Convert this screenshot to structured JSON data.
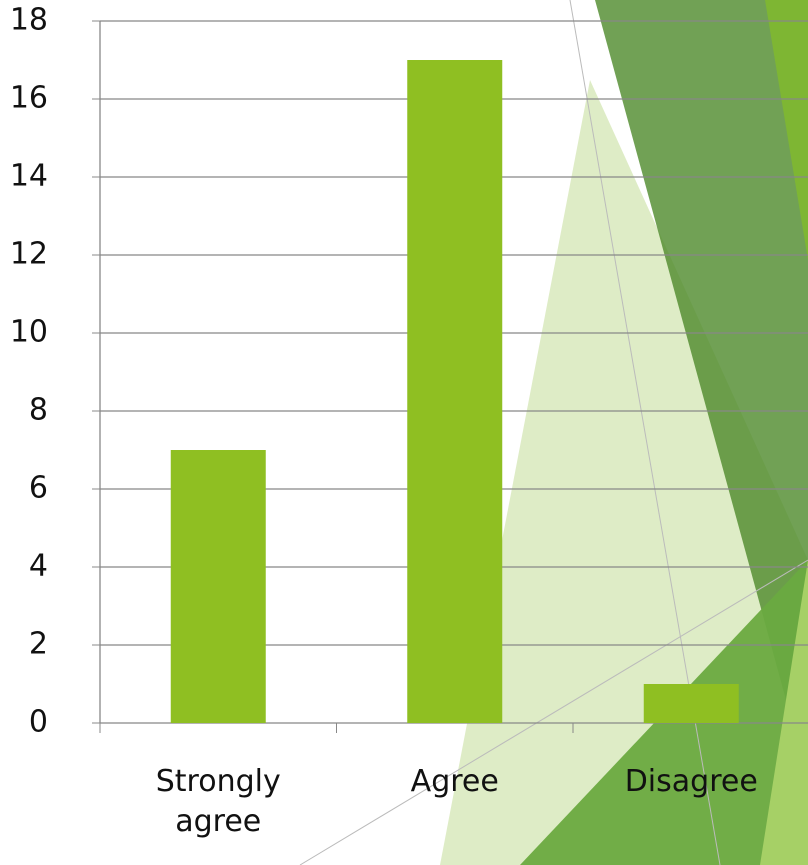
{
  "chart_data": {
    "type": "bar",
    "categories": [
      "Strongly agree",
      "Agree",
      "Disagree"
    ],
    "values": [
      7,
      17,
      1
    ],
    "color": "#8fbf22",
    "ylim": [
      0,
      18
    ],
    "yticks": [
      0,
      2,
      4,
      6,
      8,
      10,
      12,
      14,
      16,
      18
    ],
    "grid": true
  }
}
